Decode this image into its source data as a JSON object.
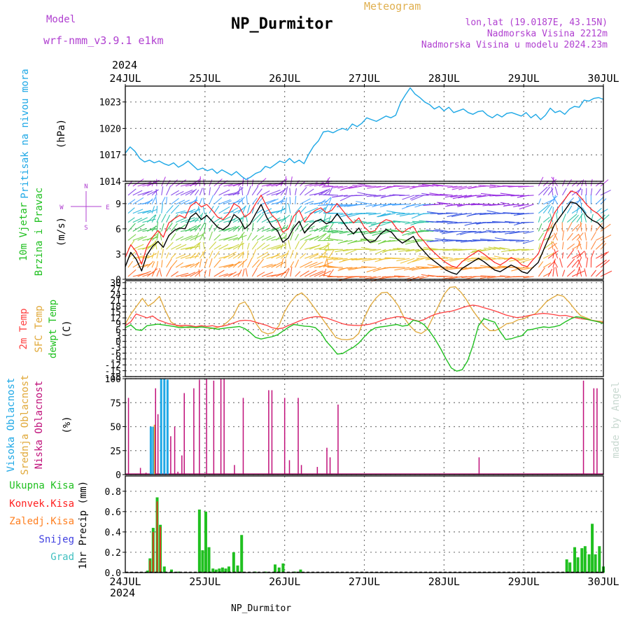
{
  "header": {
    "model_label": "Model",
    "model_name": "wrf-nmm_v3.9.1  e1km",
    "meteogram_label": "Meteogram",
    "station_title": "NP_Durmitor",
    "lonlat": "lon,lat (19.0187E, 43.15N)",
    "elevation": "Nadmorska Visina 2212m",
    "model_elevation": "Nadmorska Visina u modelu 2024.23m",
    "year_top": "2024",
    "year_bottom": "2024",
    "footer_station": "NP_Durmitor",
    "credit": "made by Angel"
  },
  "colors": {
    "pressure": "#1ea8e6",
    "wind_speed": "#000000",
    "gust": "#ff2020",
    "temp_2m": "#ff4040",
    "temp_sfc": "#e0a838",
    "dewpoint": "#20c020",
    "high_cloud": "#1ea8e6",
    "mid_cloud": "#e0a838",
    "low_cloud": "#c0107a",
    "total_precip": "#20c020",
    "conv_precip": "#ff2020",
    "frozen_precip": "#ff7f20",
    "snow": "#4040e0",
    "hail": "#40c0c0",
    "label_purple": "#b040d0"
  },
  "chart_data": [
    {
      "type": "line",
      "name": "pressure-panel",
      "ylabel": "Pritisak na nivou mora",
      "yunit": "(hPa)",
      "x_ticks": [
        "24JUL",
        "25JUL",
        "26JUL",
        "27JUL",
        "28JUL",
        "29JUL",
        "30JUL"
      ],
      "ylim": [
        1014,
        1024.8
      ],
      "yticks": [
        1014,
        1017,
        1020,
        1023
      ],
      "grid": true,
      "series": [
        {
          "values": [
            1017.2,
            1017.9,
            1017.4,
            1016.6,
            1016.2,
            1016.4,
            1016.1,
            1016.3,
            1016.0,
            1015.8,
            1016.1,
            1015.6,
            1015.9,
            1016.3,
            1015.8,
            1015.3,
            1015.5,
            1015.2,
            1015.4,
            1014.9,
            1015.3,
            1015.0,
            1014.7,
            1015.1,
            1014.6,
            1014.2,
            1014.5,
            1014.9,
            1015.1,
            1015.7,
            1015.5,
            1015.9,
            1016.3,
            1016.1,
            1016.6,
            1016.1,
            1016.4,
            1016.0,
            1017.1,
            1018.0,
            1018.6,
            1019.6,
            1019.7,
            1019.5,
            1019.8,
            1020.0,
            1019.8,
            1020.5,
            1020.2,
            1020.6,
            1021.2,
            1021.0,
            1020.8,
            1021.1,
            1021.4,
            1021.2,
            1021.5,
            1022.9,
            1023.8,
            1024.6,
            1023.9,
            1023.5,
            1023.0,
            1022.7,
            1022.2,
            1022.5,
            1022.0,
            1022.4,
            1021.8,
            1022.0,
            1022.2,
            1021.8,
            1021.6,
            1021.9,
            1022.0,
            1021.5,
            1021.2,
            1021.6,
            1021.3,
            1021.7,
            1021.8,
            1021.6,
            1021.4,
            1021.8,
            1021.2,
            1021.6,
            1021.0,
            1021.5,
            1022.3,
            1021.8,
            1022.0,
            1021.6,
            1022.2,
            1022.5,
            1022.4,
            1023.2,
            1023.1,
            1023.4,
            1023.5,
            1023.3
          ]
        }
      ]
    },
    {
      "type": "line",
      "name": "wind-panel",
      "ylabel_1": "10m Vjetar",
      "ylabel_2": "Brzina i Pravac",
      "yunit": "(m/s)",
      "compass": {
        "n": "N",
        "s": "S",
        "e": "E",
        "w": "W"
      },
      "ylim": [
        0,
        11.4
      ],
      "yticks": [
        0,
        3,
        6,
        9
      ],
      "grid": true,
      "series": [
        {
          "values": [
            1.5,
            3.2,
            2.4,
            1.0,
            2.9,
            3.9,
            4.5,
            3.8,
            5.2,
            5.8,
            6.1,
            6.0,
            7.4,
            7.9,
            7.1,
            7.6,
            6.9,
            6.2,
            5.9,
            6.4,
            7.7,
            7.2,
            6.0,
            6.6,
            7.8,
            8.9,
            7.4,
            6.3,
            5.8,
            4.4,
            4.9,
            6.1,
            6.9,
            5.5,
            6.3,
            6.9,
            7.1,
            6.6,
            6.9,
            7.8,
            6.9,
            6.0,
            5.4,
            6.1,
            5.0,
            4.4,
            4.6,
            5.4,
            5.9,
            5.6,
            4.8,
            4.3,
            4.7,
            5.1,
            4.0,
            3.3,
            2.6,
            2.1,
            1.6,
            1.1,
            0.8,
            0.6,
            1.3,
            1.7,
            2.1,
            2.5,
            2.1,
            1.6,
            1.1,
            0.9,
            1.3,
            1.7,
            1.4,
            0.9,
            0.7,
            1.4,
            2.0,
            3.5,
            5.0,
            6.5,
            7.4,
            8.3,
            9.2,
            9.0,
            8.4,
            7.5,
            7.0,
            6.7,
            6.0
          ]
        },
        {
          "values": [
            2.6,
            4.1,
            3.3,
            1.8,
            3.9,
            5.0,
            5.8,
            5.0,
            6.7,
            7.2,
            7.6,
            7.3,
            8.7,
            9.2,
            8.6,
            8.9,
            8.2,
            7.4,
            7.1,
            7.8,
            9.0,
            8.6,
            7.4,
            7.9,
            9.0,
            10.0,
            8.7,
            7.6,
            7.0,
            5.6,
            6.0,
            7.5,
            8.2,
            6.8,
            7.7,
            8.2,
            8.5,
            7.9,
            8.2,
            9.0,
            8.2,
            7.4,
            6.7,
            7.3,
            6.2,
            5.6,
            5.8,
            6.7,
            7.1,
            6.9,
            6.0,
            5.5,
            6.0,
            6.3,
            5.2,
            4.5,
            3.7,
            3.1,
            2.5,
            2.0,
            1.6,
            1.4,
            2.1,
            2.6,
            3.0,
            3.4,
            3.0,
            2.5,
            2.0,
            1.7,
            2.1,
            2.6,
            2.3,
            1.7,
            1.5,
            2.3,
            3.0,
            4.7,
            6.3,
            7.9,
            8.8,
            9.6,
            10.5,
            10.3,
            9.6,
            8.8,
            8.2,
            7.8,
            7.1
          ]
        }
      ]
    },
    {
      "type": "line",
      "name": "temperature-panel",
      "ylabel_1": "2m Temp",
      "ylabel_2": "SFC Temp",
      "ylabel_3": "dewpt Temp",
      "yunit": "(C)",
      "ylim": [
        -18,
        31
      ],
      "yticks": [
        -18,
        -15,
        -12,
        -9,
        -6,
        -3,
        0,
        3,
        6,
        9,
        12,
        15,
        18,
        21,
        24,
        27,
        30
      ],
      "grid": true,
      "series": [
        {
          "values": [
            8,
            10,
            14,
            13,
            12,
            13,
            11,
            10,
            9,
            8.5,
            8,
            8.2,
            8,
            7.5,
            8,
            7.6,
            8,
            7.4,
            7.8,
            8.5,
            9.5,
            10.5,
            10.8,
            10.6,
            9.8,
            9,
            8.2,
            7,
            6.4,
            6.8,
            8.1,
            9.2,
            10.4,
            11.4,
            12.2,
            12.6,
            12.5,
            12,
            11,
            10,
            9,
            8.4,
            8.2,
            8.1,
            8.4,
            8.8,
            9.5,
            10.5,
            11.4,
            12,
            12.6,
            12.5,
            11.8,
            11,
            10.3,
            11.1,
            12.6,
            13.8,
            14.5,
            15,
            15.4,
            16.2,
            17.2,
            18,
            18.5,
            18.1,
            17.2,
            16.4,
            15.6,
            14.6,
            13.5,
            12.8,
            12.2,
            12.4,
            13,
            13.6,
            14,
            14.3,
            14,
            13.6,
            13.1,
            13.3,
            12.6,
            12,
            11.5,
            11.2,
            10.6,
            10.1,
            9.5
          ]
        },
        {
          "values": [
            9,
            14,
            18,
            22,
            18,
            20,
            23,
            16,
            10,
            8,
            7.5,
            7,
            7.2,
            7.4,
            7.2,
            6.5,
            7,
            7.8,
            10,
            13,
            19,
            20.2,
            15.8,
            9,
            5,
            3.8,
            4.5,
            8,
            15.2,
            20,
            23.3,
            24.8,
            22,
            18,
            14,
            10,
            6,
            2,
            1,
            0.8,
            1.4,
            4,
            12,
            18,
            22,
            24.8,
            25.1,
            22,
            18,
            12,
            8,
            5,
            4,
            6,
            12,
            18,
            24,
            27.6,
            27.9,
            25,
            21,
            16,
            12,
            8,
            5.5,
            5.5,
            7,
            9,
            9.5,
            11,
            11.5,
            13,
            14,
            17,
            20.3,
            22.2,
            23.8,
            23,
            20,
            16.3,
            13.1,
            12,
            10.8,
            10.4,
            10.1
          ]
        },
        {
          "values": [
            7,
            8.4,
            6,
            5.6,
            8,
            8.4,
            8.8,
            8.4,
            8,
            7.6,
            7,
            7.2,
            7.4,
            7,
            7.4,
            7,
            6.8,
            6.2,
            6.6,
            7,
            7.3,
            7.6,
            6.5,
            4.5,
            2,
            1.2,
            1.8,
            2.4,
            3.3,
            5.2,
            7.1,
            8.6,
            8.2,
            7.8,
            7.6,
            7,
            4.5,
            0,
            -3,
            -6.5,
            -6.2,
            -4.5,
            -3,
            -0.8,
            2.3,
            5.2,
            6.9,
            7.4,
            7.7,
            8.2,
            8.6,
            7.8,
            8.2,
            10.8,
            10.2,
            8.5,
            5.2,
            1.2,
            -3.5,
            -8.8,
            -13.6,
            -15.2,
            -14.5,
            -10,
            -2,
            8,
            11.6,
            10.7,
            9.8,
            5,
            1,
            1.3,
            2.2,
            2.9,
            5.8,
            6.2,
            6.9,
            7.4,
            7.1,
            7.5,
            8.2,
            10,
            11.5,
            12.6,
            12.2,
            11.3,
            10.6,
            10,
            9.2
          ]
        }
      ]
    },
    {
      "type": "bar",
      "name": "cloud-panel",
      "ylabel_1": "Visoka Oblacnost",
      "ylabel_2": "Srednja Oblacnost",
      "ylabel_3": "Niska Oblacnost",
      "yunit": "(%)",
      "ylim": [
        0,
        100
      ],
      "yticks": [
        0,
        25,
        50,
        75,
        100
      ],
      "grid": true,
      "bars": [
        {
          "x": 0.04,
          "value": 80,
          "kind": "low"
        },
        {
          "x": 0.19,
          "value": 7,
          "kind": "low"
        },
        {
          "x": 0.26,
          "value": 2,
          "kind": "low"
        },
        {
          "x": 0.32,
          "value": 50,
          "kind": "high"
        },
        {
          "x": 0.35,
          "value": 50,
          "kind": "high"
        },
        {
          "x": 0.37,
          "value": 52,
          "kind": "mid"
        },
        {
          "x": 0.38,
          "value": 90,
          "kind": "low"
        },
        {
          "x": 0.41,
          "value": 63,
          "kind": "low"
        },
        {
          "x": 0.45,
          "value": 100,
          "kind": "high"
        },
        {
          "x": 0.49,
          "value": 100,
          "kind": "high"
        },
        {
          "x": 0.53,
          "value": 99,
          "kind": "high"
        },
        {
          "x": 0.57,
          "value": 40,
          "kind": "low"
        },
        {
          "x": 0.62,
          "value": 50,
          "kind": "low"
        },
        {
          "x": 0.66,
          "value": 3,
          "kind": "low"
        },
        {
          "x": 0.71,
          "value": 20,
          "kind": "low"
        },
        {
          "x": 0.74,
          "value": 85,
          "kind": "low"
        },
        {
          "x": 0.86,
          "value": 90,
          "kind": "low"
        },
        {
          "x": 0.93,
          "value": 99,
          "kind": "low"
        },
        {
          "x": 1.02,
          "value": 100,
          "kind": "low"
        },
        {
          "x": 1.11,
          "value": 98,
          "kind": "low"
        },
        {
          "x": 1.2,
          "value": 100,
          "kind": "low"
        },
        {
          "x": 1.24,
          "value": 100,
          "kind": "low"
        },
        {
          "x": 1.37,
          "value": 10,
          "kind": "low"
        },
        {
          "x": 1.48,
          "value": 80,
          "kind": "low"
        },
        {
          "x": 1.8,
          "value": 88,
          "kind": "low"
        },
        {
          "x": 1.84,
          "value": 88,
          "kind": "low"
        },
        {
          "x": 2.0,
          "value": 80,
          "kind": "low"
        },
        {
          "x": 2.06,
          "value": 15,
          "kind": "low"
        },
        {
          "x": 2.17,
          "value": 80,
          "kind": "low"
        },
        {
          "x": 2.21,
          "value": 10,
          "kind": "low"
        },
        {
          "x": 2.41,
          "value": 8,
          "kind": "low"
        },
        {
          "x": 2.53,
          "value": 28,
          "kind": "low"
        },
        {
          "x": 2.57,
          "value": 18,
          "kind": "low"
        },
        {
          "x": 2.67,
          "value": 73,
          "kind": "low"
        },
        {
          "x": 4.44,
          "value": 18,
          "kind": "low"
        },
        {
          "x": 5.75,
          "value": 98,
          "kind": "low"
        },
        {
          "x": 5.88,
          "value": 90,
          "kind": "low"
        },
        {
          "x": 5.92,
          "value": 90,
          "kind": "low"
        }
      ]
    },
    {
      "type": "bar",
      "name": "precip-panel",
      "legend": [
        "Ukupna Kisa",
        "Konvek.Kisa",
        "Zaledj.Kisa",
        "Snijeg",
        "Grad"
      ],
      "ylabel": "1hr Precip (mm)",
      "ylim": [
        0,
        0.95
      ],
      "yticks": [
        0,
        0.2,
        0.4,
        0.6,
        0.8
      ],
      "grid": true,
      "bars": [
        {
          "x": 0.28,
          "value": 0.02
        },
        {
          "x": 0.31,
          "value": 0.14
        },
        {
          "x": 0.35,
          "value": 0.44
        },
        {
          "x": 0.4,
          "value": 0.74
        },
        {
          "x": 0.44,
          "value": 0.47
        },
        {
          "x": 0.49,
          "value": 0.06
        },
        {
          "x": 0.58,
          "value": 0.03
        },
        {
          "x": 0.67,
          "value": 0.01
        },
        {
          "x": 0.93,
          "value": 0.62
        },
        {
          "x": 0.97,
          "value": 0.22
        },
        {
          "x": 1.01,
          "value": 0.6
        },
        {
          "x": 1.05,
          "value": 0.25
        },
        {
          "x": 1.1,
          "value": 0.04
        },
        {
          "x": 1.14,
          "value": 0.03
        },
        {
          "x": 1.18,
          "value": 0.04
        },
        {
          "x": 1.22,
          "value": 0.05
        },
        {
          "x": 1.26,
          "value": 0.04
        },
        {
          "x": 1.3,
          "value": 0.06
        },
        {
          "x": 1.36,
          "value": 0.2
        },
        {
          "x": 1.41,
          "value": 0.07
        },
        {
          "x": 1.46,
          "value": 0.37
        },
        {
          "x": 1.63,
          "value": 0.01
        },
        {
          "x": 1.76,
          "value": 0.01
        },
        {
          "x": 1.88,
          "value": 0.08
        },
        {
          "x": 1.93,
          "value": 0.05
        },
        {
          "x": 1.98,
          "value": 0.09
        },
        {
          "x": 2.13,
          "value": 0.01
        },
        {
          "x": 2.2,
          "value": 0.03
        },
        {
          "x": 5.54,
          "value": 0.13
        },
        {
          "x": 5.58,
          "value": 0.1
        },
        {
          "x": 5.64,
          "value": 0.25
        },
        {
          "x": 5.68,
          "value": 0.15
        },
        {
          "x": 5.73,
          "value": 0.24
        },
        {
          "x": 5.77,
          "value": 0.26
        },
        {
          "x": 5.82,
          "value": 0.18
        },
        {
          "x": 5.86,
          "value": 0.48
        },
        {
          "x": 5.9,
          "value": 0.18
        },
        {
          "x": 5.95,
          "value": 0.26
        },
        {
          "x": 6.0,
          "value": 0.06
        }
      ]
    }
  ]
}
